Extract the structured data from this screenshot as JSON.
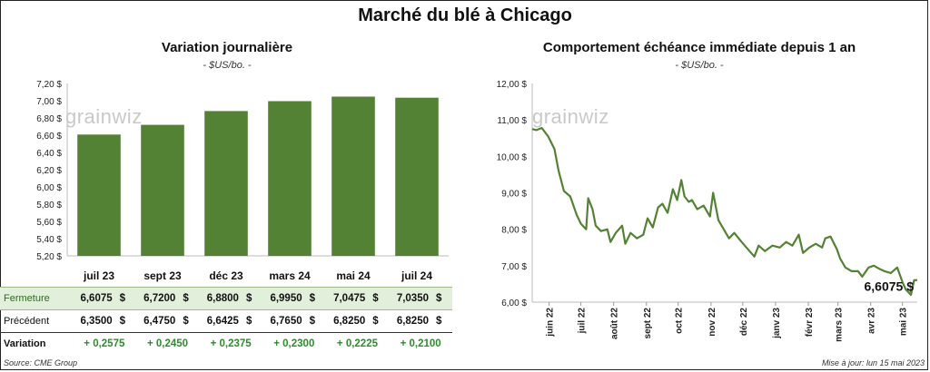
{
  "title": "Marché du blé à Chicago",
  "left": {
    "title": "Variation journalière",
    "unit": "- $US/bo. -",
    "watermark": "grainwiz"
  },
  "right": {
    "title": "Comportement échéance immédiate depuis 1 an",
    "unit": "- $US/bo. -",
    "watermark": "grainwiz",
    "last_label": "6,6075 $"
  },
  "colors": {
    "bar": "#548235",
    "line": "#548235",
    "close_row": "#e2efda"
  },
  "table": {
    "row_labels": {
      "close": "Fermeture",
      "prev": "Précédent",
      "var": "Variation"
    },
    "currency": "$",
    "close": [
      "6,6075",
      "6,7200",
      "6,8800",
      "6,9950",
      "7,0475",
      "7,0350"
    ],
    "prev": [
      "6,3500",
      "6,4750",
      "6,6425",
      "6,7650",
      "6,8250",
      "6,8250"
    ],
    "var": [
      "+ 0,2575",
      "+ 0,2450",
      "+ 0,2375",
      "+ 0,2300",
      "+ 0,2225",
      "+ 0,2100"
    ]
  },
  "footer": {
    "source": "Source: CME Group",
    "updated": "Mise à jour: lun 15 mai 2023"
  },
  "chart_data": [
    {
      "type": "bar",
      "title": "Variation journalière",
      "ylabel": "$US/bo.",
      "categories": [
        "juil 23",
        "sept 23",
        "déc 23",
        "mars 24",
        "mai 24",
        "juil 24"
      ],
      "values": [
        6.6075,
        6.72,
        6.88,
        6.995,
        7.0475,
        7.035
      ],
      "ylim": [
        5.2,
        7.2
      ],
      "yticks": [
        "5,20 $",
        "5,40 $",
        "5,60 $",
        "5,80 $",
        "6,00 $",
        "6,20 $",
        "6,40 $",
        "6,60 $",
        "6,80 $",
        "7,00 $",
        "7,20 $"
      ],
      "grid": false
    },
    {
      "type": "line",
      "title": "Comportement échéance immédiate depuis 1 an",
      "ylabel": "$US/bo.",
      "ylim": [
        6.0,
        12.0
      ],
      "yticks": [
        "6,00 $",
        "7,00 $",
        "8,00 $",
        "9,00 $",
        "10,00 $",
        "11,00 $",
        "12,00 $"
      ],
      "xticks": [
        "juin 22",
        "juil 22",
        "août 22",
        "sept 22",
        "oct 22",
        "nov 22",
        "déc 22",
        "janv 23",
        "févr 23",
        "mars 23",
        "avr 23",
        "mai 23"
      ],
      "x": [
        "2022-05-16",
        "2022-05-20",
        "2022-05-25",
        "2022-05-31",
        "2022-06-06",
        "2022-06-10",
        "2022-06-15",
        "2022-06-21",
        "2022-06-27",
        "2022-07-01",
        "2022-07-06",
        "2022-07-08",
        "2022-07-12",
        "2022-07-15",
        "2022-07-20",
        "2022-07-26",
        "2022-07-29",
        "2022-08-03",
        "2022-08-09",
        "2022-08-12",
        "2022-08-17",
        "2022-08-23",
        "2022-08-29",
        "2022-09-02",
        "2022-09-07",
        "2022-09-12",
        "2022-09-16",
        "2022-09-21",
        "2022-09-26",
        "2022-09-30",
        "2022-10-04",
        "2022-10-07",
        "2022-10-11",
        "2022-10-14",
        "2022-10-19",
        "2022-10-25",
        "2022-10-31",
        "2022-11-03",
        "2022-11-08",
        "2022-11-14",
        "2022-11-18",
        "2022-11-23",
        "2022-11-30",
        "2022-12-06",
        "2022-12-12",
        "2022-12-16",
        "2022-12-22",
        "2022-12-29",
        "2023-01-05",
        "2023-01-11",
        "2023-01-17",
        "2023-01-23",
        "2023-01-27",
        "2023-02-02",
        "2023-02-08",
        "2023-02-14",
        "2023-02-17",
        "2023-02-22",
        "2023-02-28",
        "2023-03-03",
        "2023-03-08",
        "2023-03-14",
        "2023-03-20",
        "2023-03-24",
        "2023-03-30",
        "2023-04-04",
        "2023-04-10",
        "2023-04-14",
        "2023-04-20",
        "2023-04-26",
        "2023-05-01",
        "2023-05-04",
        "2023-05-09",
        "2023-05-12",
        "2023-05-15"
      ],
      "y": [
        10.75,
        10.72,
        10.78,
        10.55,
        10.2,
        9.6,
        9.05,
        8.9,
        8.4,
        8.15,
        8.0,
        8.85,
        8.55,
        8.1,
        7.95,
        8.0,
        7.65,
        7.9,
        8.1,
        7.6,
        7.9,
        7.75,
        7.85,
        8.3,
        8.05,
        8.6,
        8.7,
        8.45,
        9.1,
        8.8,
        9.35,
        8.9,
        8.75,
        8.8,
        8.55,
        8.65,
        8.35,
        9.0,
        8.25,
        7.95,
        7.75,
        7.9,
        7.65,
        7.45,
        7.25,
        7.55,
        7.4,
        7.55,
        7.5,
        7.65,
        7.55,
        7.85,
        7.35,
        7.5,
        7.6,
        7.5,
        7.75,
        7.8,
        7.45,
        7.2,
        6.95,
        6.85,
        6.85,
        6.7,
        6.95,
        7.0,
        6.9,
        6.85,
        6.8,
        6.95,
        6.55,
        6.35,
        6.2,
        6.6,
        6.6075
      ]
    }
  ]
}
